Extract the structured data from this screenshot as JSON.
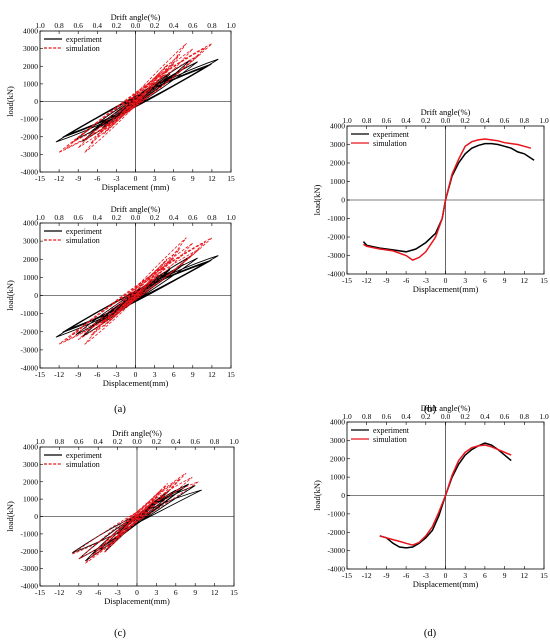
{
  "colors": {
    "experiment": "#000000",
    "simulation": "#e8141b"
  },
  "chart_data": [
    {
      "id": "a1",
      "type": "line",
      "hysteresis": true,
      "xlabel": "Displacement (mm)",
      "ylabel": "load(kN)",
      "top_label": "Drift angle(%)",
      "xlim": [
        -15,
        15
      ],
      "ylim": [
        -4000,
        4000
      ],
      "x_ticks": [
        "-15",
        "-12",
        "-9",
        "-6",
        "-3",
        "0",
        "3",
        "6",
        "9",
        "12",
        "15"
      ],
      "y_ticks": [
        "-4000",
        "-3000",
        "-2000",
        "-1000",
        "0",
        "1000",
        "2000",
        "3000",
        "4000"
      ],
      "top_ticks": [
        "1.0",
        "0.8",
        "0.6",
        "0.4",
        "0.2",
        "0.0",
        "0.2",
        "0.4",
        "0.6",
        "0.8",
        "1.0"
      ],
      "legend": [
        {
          "label": "experiment"
        },
        {
          "label": "simulation"
        }
      ],
      "series": [
        {
          "name": "experiment",
          "peaks": [
            [
              13,
              2400
            ],
            [
              -12.5,
              -2300
            ]
          ],
          "cycles": 12
        },
        {
          "name": "simulation",
          "peaks": [
            [
              12,
              3300
            ],
            [
              -12,
              -2900
            ]
          ],
          "cycles": 12
        }
      ]
    },
    {
      "id": "a2",
      "type": "line",
      "hysteresis": true,
      "xlabel": "Displacement(mm)",
      "ylabel": "load(kN)",
      "top_label": "Drift angle(%)",
      "xlim": [
        -15,
        15
      ],
      "ylim": [
        -4000,
        4000
      ],
      "x_ticks": [
        "-15",
        "-12",
        "-9",
        "-6",
        "-3",
        "0",
        "3",
        "6",
        "9",
        "12",
        "15"
      ],
      "y_ticks": [
        "-4000",
        "-3000",
        "-2000",
        "-1000",
        "0",
        "1000",
        "2000",
        "3000",
        "4000"
      ],
      "top_ticks": [
        "1.0",
        "0.8",
        "0.6",
        "0.4",
        "0.2",
        "0.0",
        "0.2",
        "0.4",
        "0.6",
        "0.8",
        "1.0"
      ],
      "legend": [
        {
          "label": "experiment"
        },
        {
          "label": "simulation"
        }
      ],
      "series": [
        {
          "name": "experiment",
          "peaks": [
            [
              13,
              2200
            ],
            [
              -12.5,
              -2300
            ]
          ],
          "cycles": 12
        },
        {
          "name": "simulation",
          "peaks": [
            [
              12,
              3200
            ],
            [
              -12,
              -2700
            ]
          ],
          "cycles": 12
        }
      ]
    },
    {
      "id": "c",
      "type": "line",
      "hysteresis": true,
      "xlabel": "Displacement(mm)",
      "ylabel": "load(kN)",
      "top_label": "Drift angle(%)",
      "xlim": [
        -15,
        15
      ],
      "ylim": [
        -4000,
        4000
      ],
      "x_ticks": [
        "-15",
        "-12",
        "-9",
        "-6",
        "-3",
        "0",
        "3",
        "6",
        "9",
        "12",
        "15"
      ],
      "y_ticks": [
        "-4000",
        "-3000",
        "-2000",
        "-1000",
        "0",
        "1000",
        "2000",
        "3000",
        "4000"
      ],
      "top_ticks": [
        "1.0",
        "0.8",
        "0.6",
        "0.4",
        "0.2",
        "0.0",
        "0.2",
        "0.4",
        "0.6",
        "0.8",
        "1.0"
      ],
      "legend": [
        {
          "label": "experiment"
        },
        {
          "label": "simulation"
        }
      ],
      "series": [
        {
          "name": "experiment",
          "peaks": [
            [
              10,
              1900
            ],
            [
              -10,
              -2600
            ]
          ],
          "cycles": 10
        },
        {
          "name": "simulation",
          "peaks": [
            [
              9.5,
              2500
            ],
            [
              -10,
              -2700
            ]
          ],
          "cycles": 10
        }
      ]
    },
    {
      "id": "b",
      "type": "line",
      "xlabel": "Displacement(mm)",
      "ylabel": "load(kN)",
      "top_label": "Drift angle(%)",
      "xlim": [
        -15,
        15
      ],
      "ylim": [
        -4000,
        4000
      ],
      "x_ticks": [
        "-15",
        "-12",
        "-9",
        "-6",
        "-3",
        "0",
        "3",
        "6",
        "9",
        "12",
        "15"
      ],
      "y_ticks": [
        "-4000",
        "-3000",
        "-2000",
        "-1000",
        "0",
        "1000",
        "2000",
        "3000",
        "4000"
      ],
      "top_ticks": [
        "1.0",
        "0.8",
        "0.6",
        "0.4",
        "0.2",
        "0.0",
        "0.2",
        "0.4",
        "0.6",
        "0.8",
        "1.0"
      ],
      "legend": [
        {
          "label": "experiment"
        },
        {
          "label": "simulation"
        }
      ],
      "series": [
        {
          "name": "experiment",
          "x": [
            -12.5,
            -12,
            -10,
            -8,
            -6,
            -4.5,
            -3,
            -1.5,
            -0.5,
            0,
            1,
            2,
            3,
            4,
            5,
            6,
            7,
            8,
            9,
            10,
            11,
            12,
            13.5
          ],
          "y": [
            -2250,
            -2450,
            -2600,
            -2700,
            -2800,
            -2650,
            -2300,
            -1800,
            -1000,
            0,
            1300,
            2000,
            2500,
            2800,
            2950,
            3050,
            3050,
            3000,
            2900,
            2800,
            2600,
            2500,
            2150
          ]
        },
        {
          "name": "simulation",
          "x": [
            -12.5,
            -12,
            -10,
            -8,
            -6,
            -5,
            -4,
            -3,
            -1.5,
            -0.5,
            0,
            1,
            2,
            3,
            4,
            5,
            6,
            7,
            8,
            9,
            10,
            11,
            12,
            13
          ],
          "y": [
            -2400,
            -2500,
            -2650,
            -2750,
            -3000,
            -3250,
            -3100,
            -2800,
            -2000,
            -1000,
            0,
            1400,
            2200,
            2900,
            3150,
            3250,
            3300,
            3250,
            3200,
            3100,
            3050,
            3000,
            2900,
            2800
          ]
        }
      ]
    },
    {
      "id": "d",
      "type": "line",
      "xlabel": "Displacement(mm)",
      "ylabel": "load(kN)",
      "top_label": "Drift angle(%)",
      "xlim": [
        -15,
        15
      ],
      "ylim": [
        -4000,
        4000
      ],
      "x_ticks": [
        "-15",
        "-12",
        "-9",
        "-6",
        "-3",
        "0",
        "3",
        "6",
        "9",
        "12",
        "15"
      ],
      "y_ticks": [
        "-4000",
        "-3000",
        "-2000",
        "-1000",
        "0",
        "1000",
        "2000",
        "3000",
        "4000"
      ],
      "top_ticks": [
        "1.0",
        "0.8",
        "0.6",
        "0.4",
        "0.2",
        "0.0",
        "0.2",
        "0.4",
        "0.6",
        "0.8",
        "1.0"
      ],
      "legend": [
        {
          "label": "experiment"
        },
        {
          "label": "simulation"
        }
      ],
      "series": [
        {
          "name": "experiment",
          "x": [
            -10,
            -9,
            -8,
            -7,
            -6,
            -5,
            -4,
            -3,
            -2,
            -1,
            0,
            1,
            2,
            3,
            4,
            5,
            6,
            7,
            8,
            9,
            10
          ],
          "y": [
            -2200,
            -2300,
            -2600,
            -2800,
            -2850,
            -2800,
            -2600,
            -2300,
            -1900,
            -1100,
            0,
            1000,
            1700,
            2200,
            2500,
            2700,
            2850,
            2750,
            2500,
            2200,
            1900
          ]
        },
        {
          "name": "simulation",
          "x": [
            -10,
            -9,
            -8,
            -7,
            -6,
            -5,
            -4,
            -3,
            -2,
            -1,
            0,
            1,
            2,
            3,
            4,
            5,
            6,
            7,
            8,
            9,
            10
          ],
          "y": [
            -2200,
            -2300,
            -2400,
            -2500,
            -2600,
            -2700,
            -2550,
            -2200,
            -1700,
            -900,
            0,
            1100,
            1900,
            2350,
            2600,
            2700,
            2750,
            2650,
            2500,
            2350,
            2200
          ]
        }
      ]
    }
  ],
  "captions": [
    "(a)",
    "(b)",
    "(c)",
    "(d)"
  ]
}
